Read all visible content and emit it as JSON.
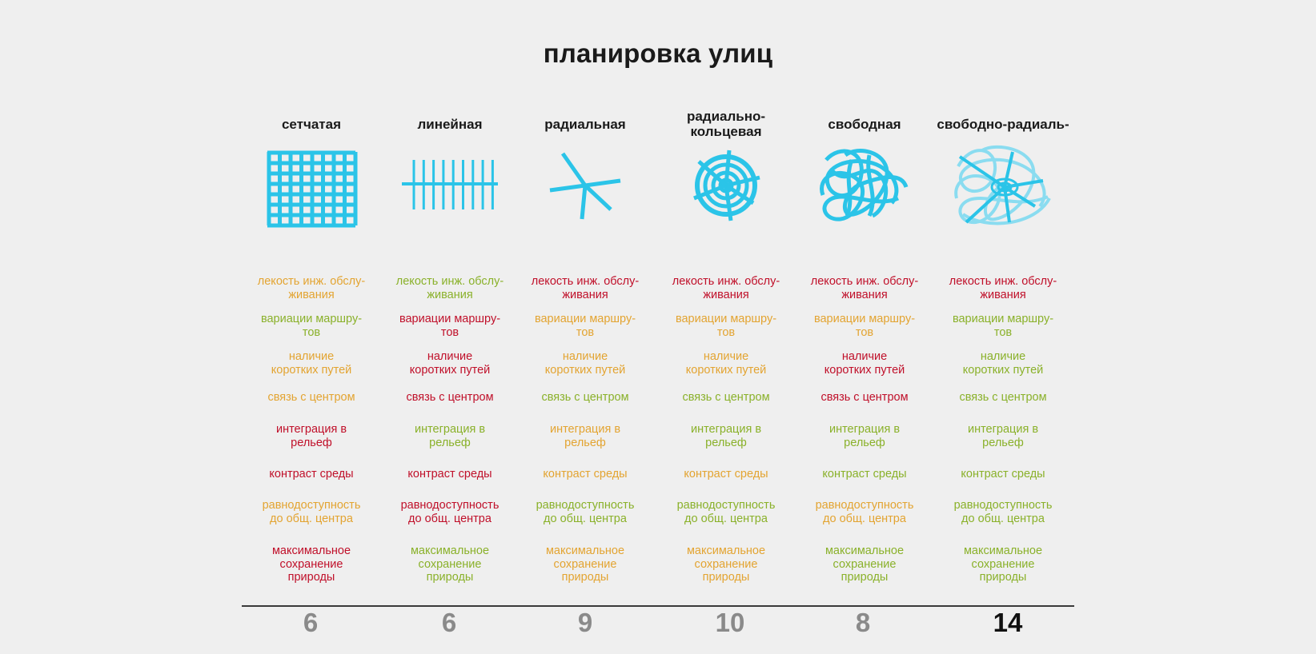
{
  "title": "планировка улиц",
  "colors": {
    "red": "#c0102a",
    "orange": "#e3a431",
    "green": "#8ab12a",
    "icon": "#2bc4e8",
    "icon_light": "#8adcf0"
  },
  "columns": [
    {
      "title": "сетчатая",
      "icon": "grid-icon",
      "criteria": [
        {
          "text": "лекость инж. обслу-\nживания",
          "color": "orange"
        },
        {
          "text": "вариации маршру-\nтов",
          "color": "green"
        },
        {
          "text": "наличие\nкоротких путей",
          "color": "orange"
        },
        {
          "text": "связь с центром",
          "color": "orange"
        },
        {
          "text": "интеграция в\nрельеф",
          "color": "red"
        },
        {
          "text": "контраст среды",
          "color": "red"
        },
        {
          "text": "равнодоступность\nдо общ. центра",
          "color": "orange"
        },
        {
          "text": "максимальное\nсохранение\nприроды",
          "color": "red"
        }
      ],
      "score": "6"
    },
    {
      "title": "линейная",
      "icon": "linear-icon",
      "criteria": [
        {
          "text": "лекость инж. обслу-\nживания",
          "color": "green"
        },
        {
          "text": "вариации маршру-\nтов",
          "color": "red"
        },
        {
          "text": "наличие\nкоротких путей",
          "color": "red"
        },
        {
          "text": "связь с центром",
          "color": "red"
        },
        {
          "text": "интеграция в\nрельеф",
          "color": "green"
        },
        {
          "text": "контраст среды",
          "color": "red"
        },
        {
          "text": "равнодоступность\nдо общ. центра",
          "color": "red"
        },
        {
          "text": "максимальное\nсохранение\nприроды",
          "color": "green"
        }
      ],
      "score": "6"
    },
    {
      "title": "радиальная",
      "icon": "radial-icon",
      "criteria": [
        {
          "text": "лекость инж. обслу-\nживания",
          "color": "red"
        },
        {
          "text": "вариации маршру-\nтов",
          "color": "orange"
        },
        {
          "text": "наличие\nкоротких путей",
          "color": "orange"
        },
        {
          "text": "связь с центром",
          "color": "green"
        },
        {
          "text": "интеграция в\nрельеф",
          "color": "orange"
        },
        {
          "text": "контраст среды",
          "color": "orange"
        },
        {
          "text": "равнодоступность\nдо общ. центра",
          "color": "green"
        },
        {
          "text": "максимальное\nсохранение\nприроды",
          "color": "orange"
        }
      ],
      "score": "9"
    },
    {
      "title": "радиально-\nкольцевая",
      "icon": "radial-ring-icon",
      "criteria": [
        {
          "text": "лекость инж. обслу-\nживания",
          "color": "red"
        },
        {
          "text": "вариации маршру-\nтов",
          "color": "orange"
        },
        {
          "text": "наличие\nкоротких путей",
          "color": "orange"
        },
        {
          "text": "связь с центром",
          "color": "green"
        },
        {
          "text": "интеграция в\nрельеф",
          "color": "green"
        },
        {
          "text": "контраст среды",
          "color": "orange"
        },
        {
          "text": "равнодоступность\nдо общ. центра",
          "color": "green"
        },
        {
          "text": "максимальное\nсохранение\nприроды",
          "color": "orange"
        }
      ],
      "score": "10"
    },
    {
      "title": "свободная",
      "icon": "free-icon",
      "criteria": [
        {
          "text": "лекость инж. обслу-\nживания",
          "color": "red"
        },
        {
          "text": "вариации маршру-\nтов",
          "color": "orange"
        },
        {
          "text": "наличие\nкоротких путей",
          "color": "red"
        },
        {
          "text": "связь с центром",
          "color": "red"
        },
        {
          "text": "интеграция в\nрельеф",
          "color": "green"
        },
        {
          "text": "контраст среды",
          "color": "green"
        },
        {
          "text": "равнодоступность\nдо общ. центра",
          "color": "orange"
        },
        {
          "text": "максимальное\nсохранение\nприроды",
          "color": "green"
        }
      ],
      "score": "8"
    },
    {
      "title": "свободно-радиаль-",
      "icon": "free-radial-icon",
      "criteria": [
        {
          "text": "лекость инж. обслу-\nживания",
          "color": "red"
        },
        {
          "text": "вариации маршру-\nтов",
          "color": "green"
        },
        {
          "text": "наличие\nкоротких путей",
          "color": "green"
        },
        {
          "text": "связь с центром",
          "color": "green"
        },
        {
          "text": "интеграция в\nрельеф",
          "color": "green"
        },
        {
          "text": "контраст среды",
          "color": "green"
        },
        {
          "text": "равнодоступность\nдо общ. центра",
          "color": "green"
        },
        {
          "text": "максимальное\nсохранение\nприроды",
          "color": "green"
        }
      ],
      "score": "14",
      "best": true
    }
  ]
}
